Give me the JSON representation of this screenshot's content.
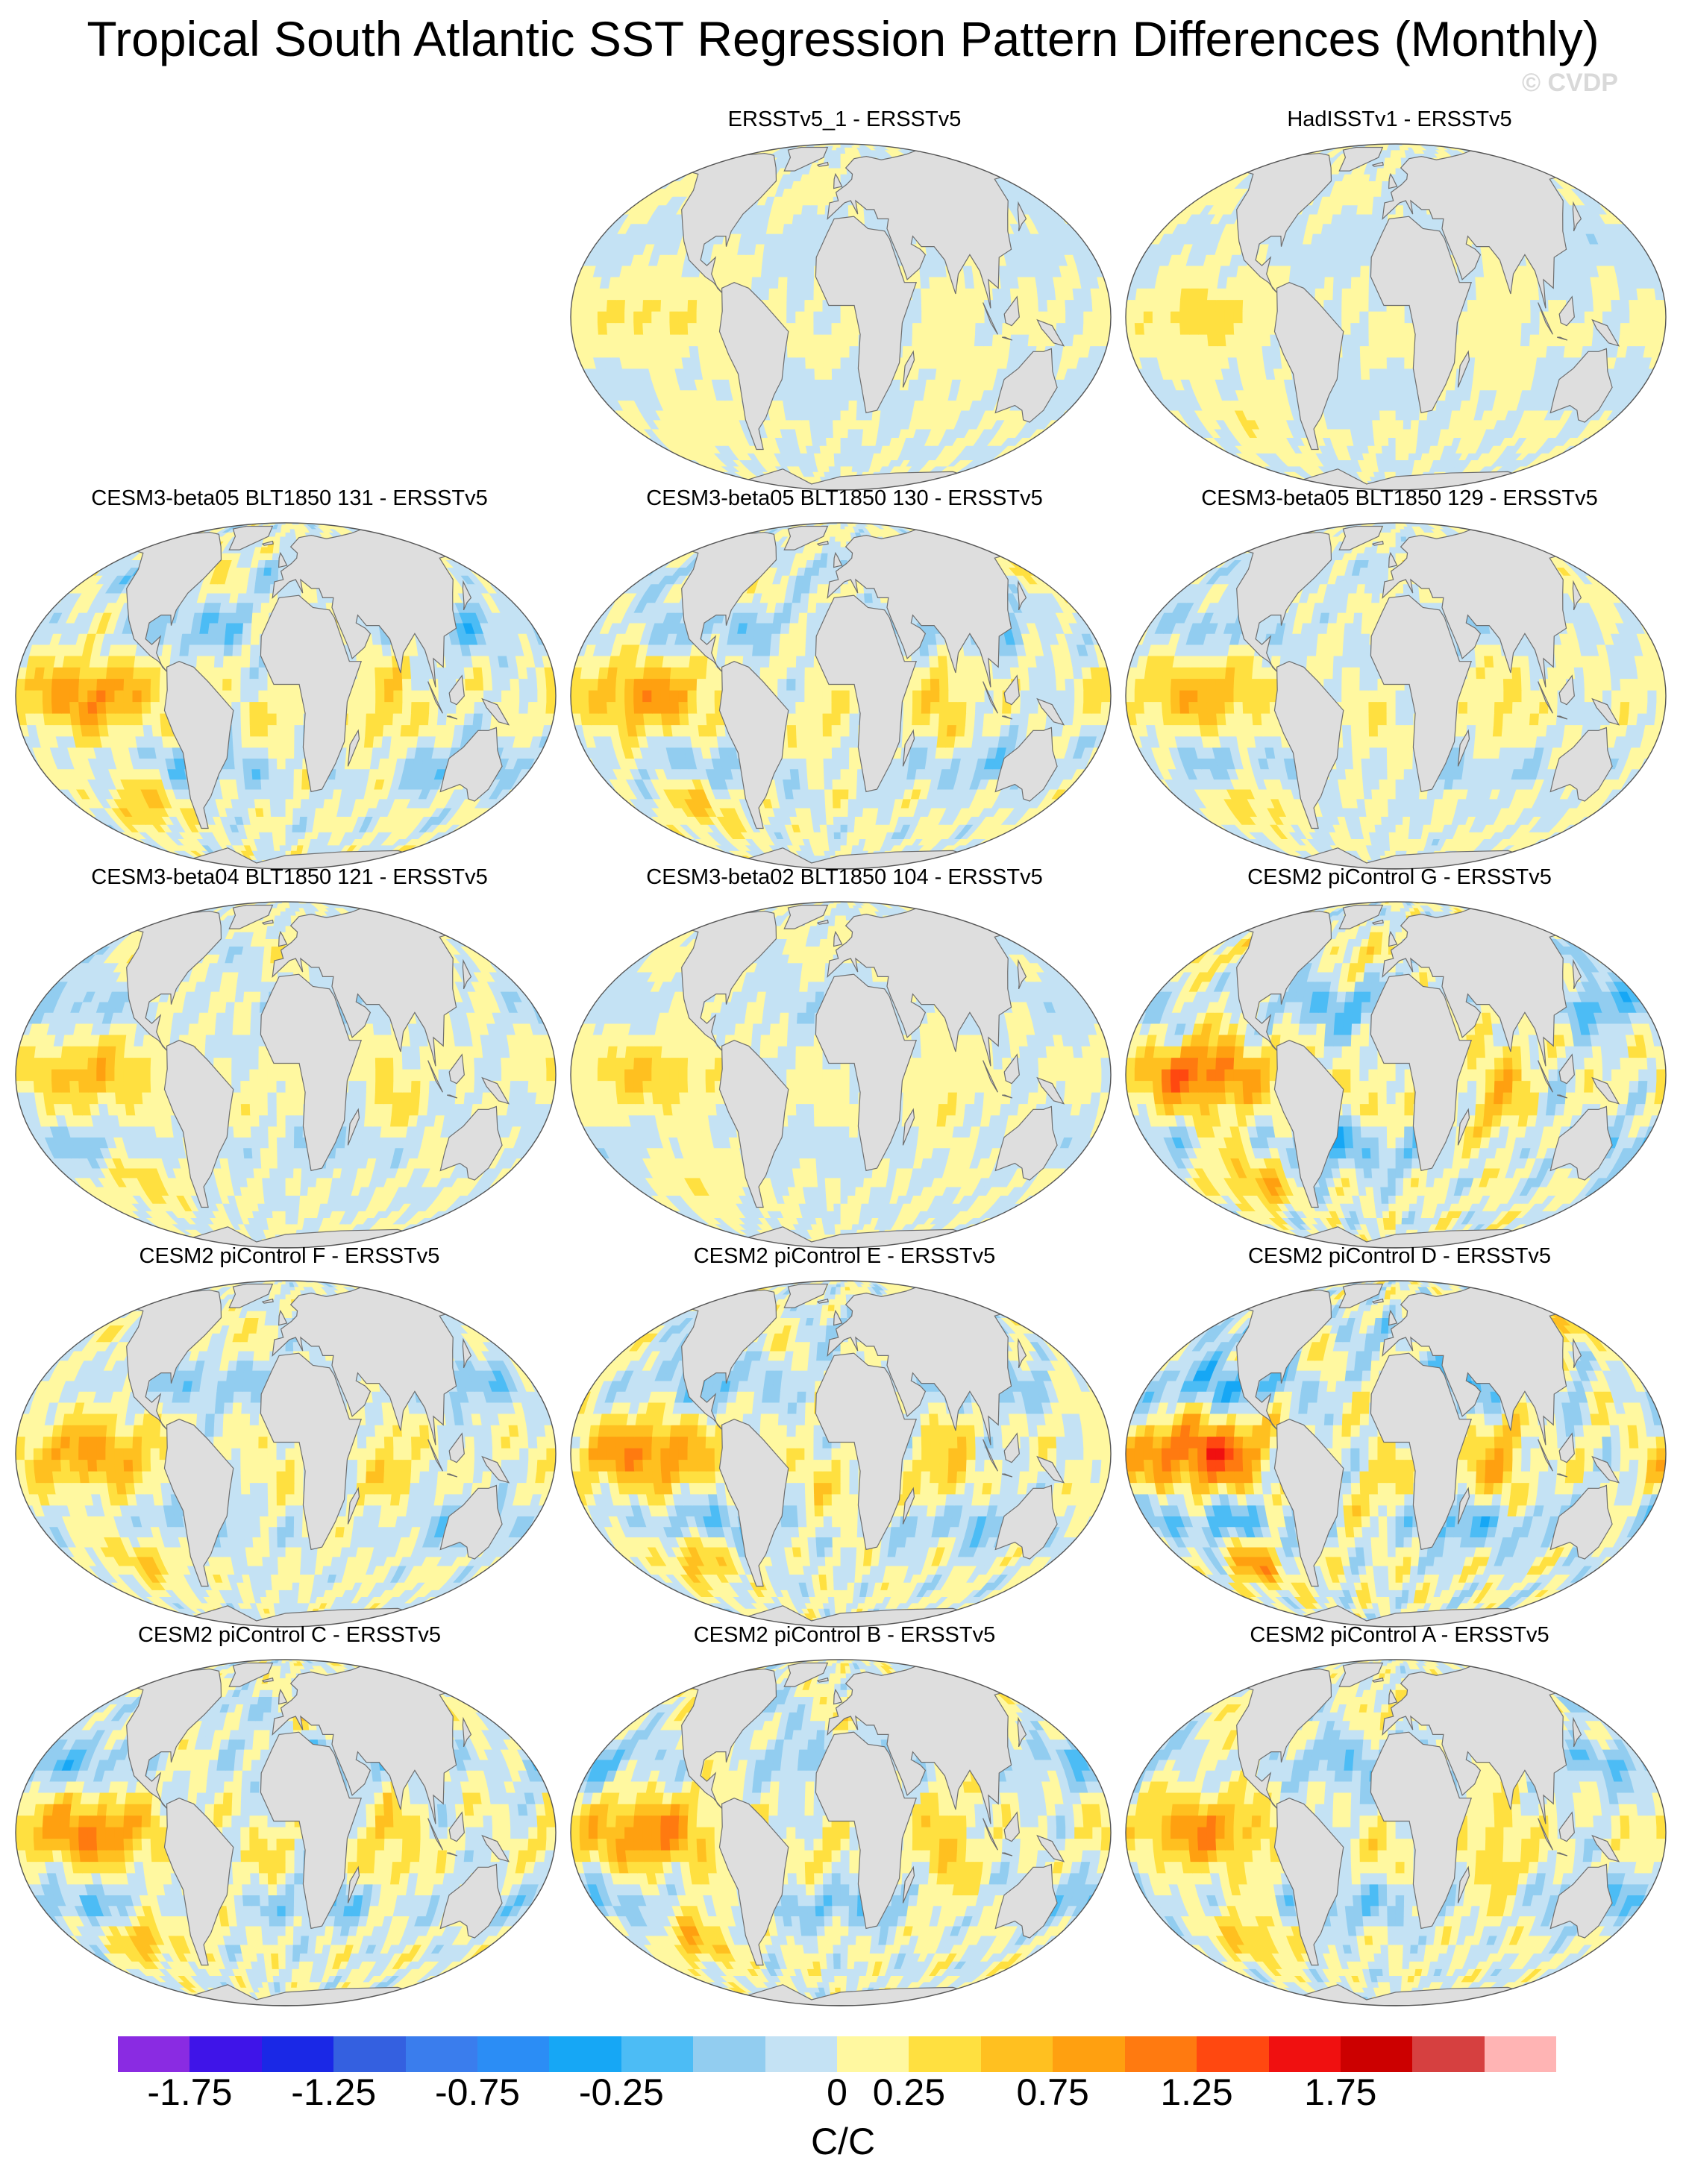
{
  "title": "Tropical South Atlantic SST Regression Pattern Differences (Monthly)",
  "watermark": "© CVDP",
  "panels": [
    {
      "title": "ERSSTv5_1 - ERSSTv5",
      "col": 1,
      "row": 0,
      "amp": 0.25
    },
    {
      "title": "HadISSTv1 - ERSSTv5",
      "col": 2,
      "row": 0,
      "amp": 0.3
    },
    {
      "title": "CESM3-beta05 BLT1850 131 - ERSSTv5",
      "col": 0,
      "row": 1,
      "amp": 0.8
    },
    {
      "title": "CESM3-beta05 BLT1850 130 - ERSSTv5",
      "col": 1,
      "row": 1,
      "amp": 0.75
    },
    {
      "title": "CESM3-beta05 BLT1850 129 - ERSSTv5",
      "col": 2,
      "row": 1,
      "amp": 0.6
    },
    {
      "title": "CESM3-beta04 BLT1850 121 - ERSSTv5",
      "col": 0,
      "row": 2,
      "amp": 0.55
    },
    {
      "title": "CESM3-beta02 BLT1850 104 - ERSSTv5",
      "col": 1,
      "row": 2,
      "amp": 0.4
    },
    {
      "title": "CESM2 piControl G - ERSSTv5",
      "col": 2,
      "row": 2,
      "amp": 1.0
    },
    {
      "title": "CESM2 piControl F - ERSSTv5",
      "col": 0,
      "row": 3,
      "amp": 0.7
    },
    {
      "title": "CESM2 piControl E - ERSSTv5",
      "col": 1,
      "row": 3,
      "amp": 0.85
    },
    {
      "title": "CESM2 piControl D - ERSSTv5",
      "col": 2,
      "row": 3,
      "amp": 1.15
    },
    {
      "title": "CESM2 piControl C - ERSSTv5",
      "col": 0,
      "row": 4,
      "amp": 0.85
    },
    {
      "title": "CESM2 piControl B - ERSSTv5",
      "col": 1,
      "row": 4,
      "amp": 0.85
    },
    {
      "title": "CESM2 piControl A - ERSSTv5",
      "col": 2,
      "row": 4,
      "amp": 0.8
    }
  ],
  "colorbar": {
    "units": "C/C",
    "colors": [
      "#8a2be2",
      "#3f14e8",
      "#1a28e6",
      "#3460e0",
      "#3a7ded",
      "#2b8df5",
      "#16a7f5",
      "#4cbcf5",
      "#92cdf0",
      "#c4e2f4",
      "#fff8a0",
      "#ffe040",
      "#ffc020",
      "#ffa010",
      "#ff7a10",
      "#ff4810",
      "#f01010",
      "#cc0000",
      "#d64040",
      "#ffb4b4"
    ],
    "labels": [
      "-1.75",
      "-1.25",
      "-0.75",
      "-0.25",
      "0",
      "0.25",
      "0.75",
      "1.25",
      "1.75"
    ],
    "label_boundary_index": [
      1,
      3,
      5,
      7,
      10,
      11,
      13,
      15,
      17
    ]
  }
}
